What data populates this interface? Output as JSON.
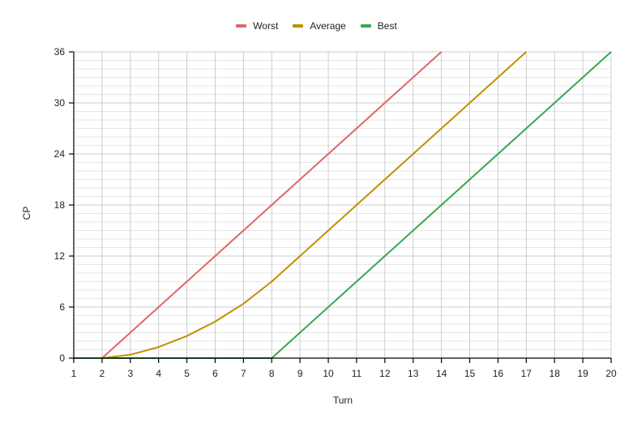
{
  "chart_data": {
    "type": "line",
    "title": "",
    "xlabel": "Turn",
    "ylabel": "CP",
    "x": [
      1,
      2,
      3,
      4,
      5,
      6,
      7,
      8,
      9,
      10,
      11,
      12,
      13,
      14,
      15,
      16,
      17,
      18,
      19,
      20
    ],
    "xlim": [
      1,
      20
    ],
    "ylim": [
      0,
      36
    ],
    "yticks": [
      0,
      6,
      12,
      18,
      24,
      30,
      36
    ],
    "xticks": [
      1,
      2,
      3,
      4,
      5,
      6,
      7,
      8,
      9,
      10,
      11,
      12,
      13,
      14,
      15,
      16,
      17,
      18,
      19,
      20
    ],
    "grid": true,
    "minor_grid_step": 1,
    "legend_position": "top",
    "series": [
      {
        "name": "Worst",
        "color": "#e06666",
        "x": [
          1,
          2,
          3,
          4,
          5,
          6,
          7,
          8,
          9,
          10,
          11,
          12,
          13,
          14
        ],
        "values": [
          0,
          0,
          3,
          6,
          9,
          12,
          15,
          18,
          21,
          24,
          27,
          30,
          33,
          36
        ]
      },
      {
        "name": "Average",
        "color": "#bf9000",
        "x": [
          1,
          2,
          3,
          4,
          5,
          6,
          7,
          8,
          9,
          10,
          11,
          12,
          13,
          14,
          15,
          16,
          17
        ],
        "values": [
          0,
          0,
          0.4,
          1.3,
          2.6,
          4.3,
          6.4,
          9,
          12,
          15,
          18,
          21,
          24,
          27,
          30,
          33,
          36
        ]
      },
      {
        "name": "Best",
        "color": "#34a853",
        "x": [
          1,
          2,
          3,
          4,
          5,
          6,
          7,
          8,
          9,
          10,
          11,
          12,
          13,
          14,
          15,
          16,
          17,
          18,
          19,
          20
        ],
        "values": [
          0,
          0,
          0,
          0,
          0,
          0,
          0,
          0,
          3,
          6,
          9,
          12,
          15,
          18,
          21,
          24,
          27,
          30,
          33,
          36
        ]
      }
    ]
  }
}
